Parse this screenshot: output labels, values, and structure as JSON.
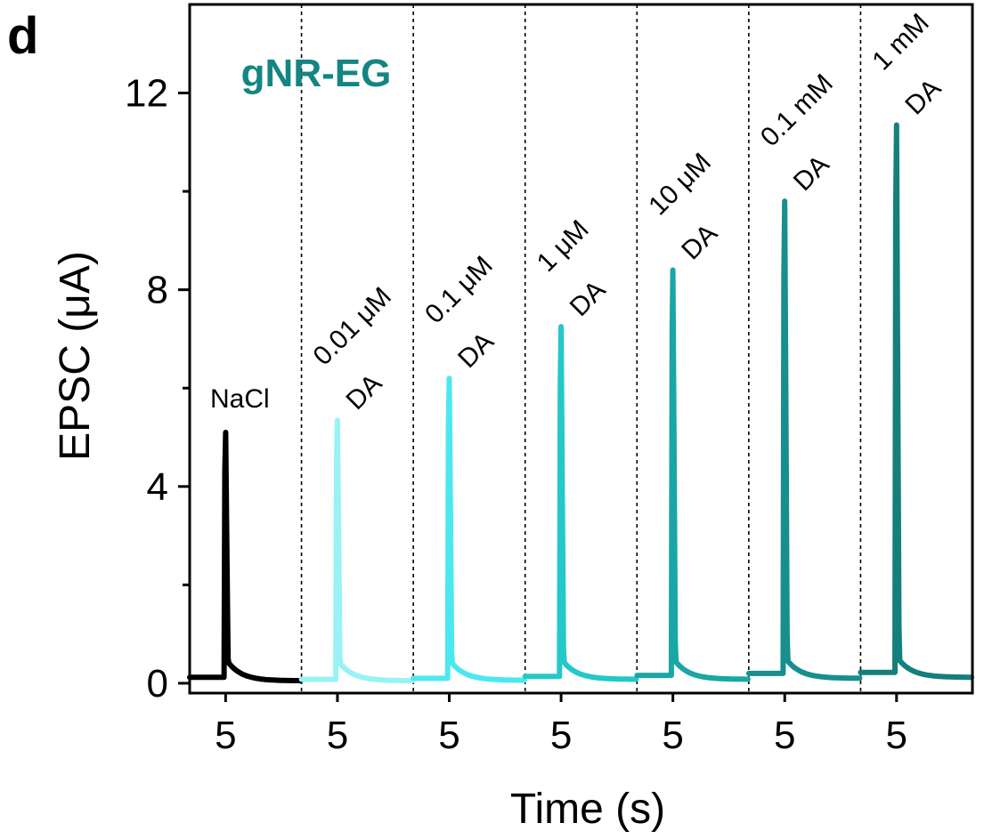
{
  "panel_letter": "d",
  "chart_data": {
    "type": "line",
    "title": "gNR-EG",
    "xlabel": "Time (s)",
    "ylabel": "EPSC (μA)",
    "ylim": [
      -0.2,
      13.8
    ],
    "yticks": [
      0,
      4,
      8,
      12
    ],
    "y_minor_ticks": [
      2,
      6,
      10
    ],
    "segment_x_range": [
      4.1,
      6.9
    ],
    "segment_xtick": 5,
    "grid": false,
    "dividers": "dashed vertical lines between segments",
    "series": [
      {
        "label_lines": [
          "NaCl"
        ],
        "color": "#000000",
        "baseline": 0.12,
        "peak": 5.1,
        "tail": 0.05
      },
      {
        "label_lines": [
          "0.01 μM",
          "DA"
        ],
        "color": "#99f2f5",
        "baseline": 0.08,
        "peak": 5.35,
        "tail": 0.05
      },
      {
        "label_lines": [
          "0.1 μM",
          "DA"
        ],
        "color": "#4de8ef",
        "baseline": 0.1,
        "peak": 6.2,
        "tail": 0.06
      },
      {
        "label_lines": [
          "1 μM",
          "DA"
        ],
        "color": "#24c8c8",
        "baseline": 0.14,
        "peak": 7.25,
        "tail": 0.08
      },
      {
        "label_lines": [
          "10 μM",
          "DA"
        ],
        "color": "#1aa6a4",
        "baseline": 0.16,
        "peak": 8.4,
        "tail": 0.08
      },
      {
        "label_lines": [
          "0.1 mM",
          "DA"
        ],
        "color": "#178f8c",
        "baseline": 0.2,
        "peak": 9.8,
        "tail": 0.1
      },
      {
        "label_lines": [
          "1 mM",
          "DA"
        ],
        "color": "#147f7c",
        "baseline": 0.22,
        "peak": 11.35,
        "tail": 0.12
      }
    ],
    "title_color": "#148582"
  }
}
